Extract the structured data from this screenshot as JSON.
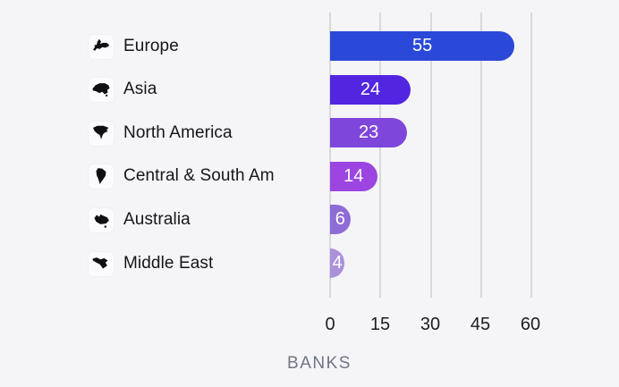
{
  "chart_data": {
    "type": "bar",
    "orientation": "horizontal",
    "title": "",
    "xlabel": "BANKS",
    "ylabel": "",
    "categories": [
      "Europe",
      "Asia",
      "North America",
      "Central & South Am",
      "Australia",
      "Middle East"
    ],
    "values": [
      55,
      24,
      23,
      14,
      6,
      4
    ],
    "xlim": [
      0,
      65
    ],
    "xticks": [
      0,
      15,
      30,
      45,
      60
    ],
    "grid": "vertical-only",
    "legend": "none",
    "value_labels": "inside-bar-white",
    "rows": [
      {
        "label": "Europe",
        "icon": "europe-icon",
        "value": 55,
        "color": "#2a49d9"
      },
      {
        "label": "Asia",
        "icon": "asia-icon",
        "value": 24,
        "color": "#5226e0"
      },
      {
        "label": "North America",
        "icon": "north-america-icon",
        "value": 23,
        "color": "#7f46dc"
      },
      {
        "label": "Central & South Am",
        "icon": "central-south-america-icon",
        "value": 14,
        "color": "#9c45e0"
      },
      {
        "label": "Australia",
        "icon": "australia-icon",
        "value": 6,
        "color": "#8e6cd6"
      },
      {
        "label": "Middle East",
        "icon": "middle-east-icon",
        "value": 4,
        "color": "#ab90da"
      }
    ],
    "tick_labels": [
      "0",
      "15",
      "30",
      "45",
      "60"
    ]
  },
  "colors": {
    "background": "#f5f5f7",
    "gridline": "#d8d8dd",
    "category_text": "#15151c",
    "tick_text": "#1d1d26",
    "axis_title_text": "#6f7582",
    "bar_value_text": "#ffffff"
  }
}
